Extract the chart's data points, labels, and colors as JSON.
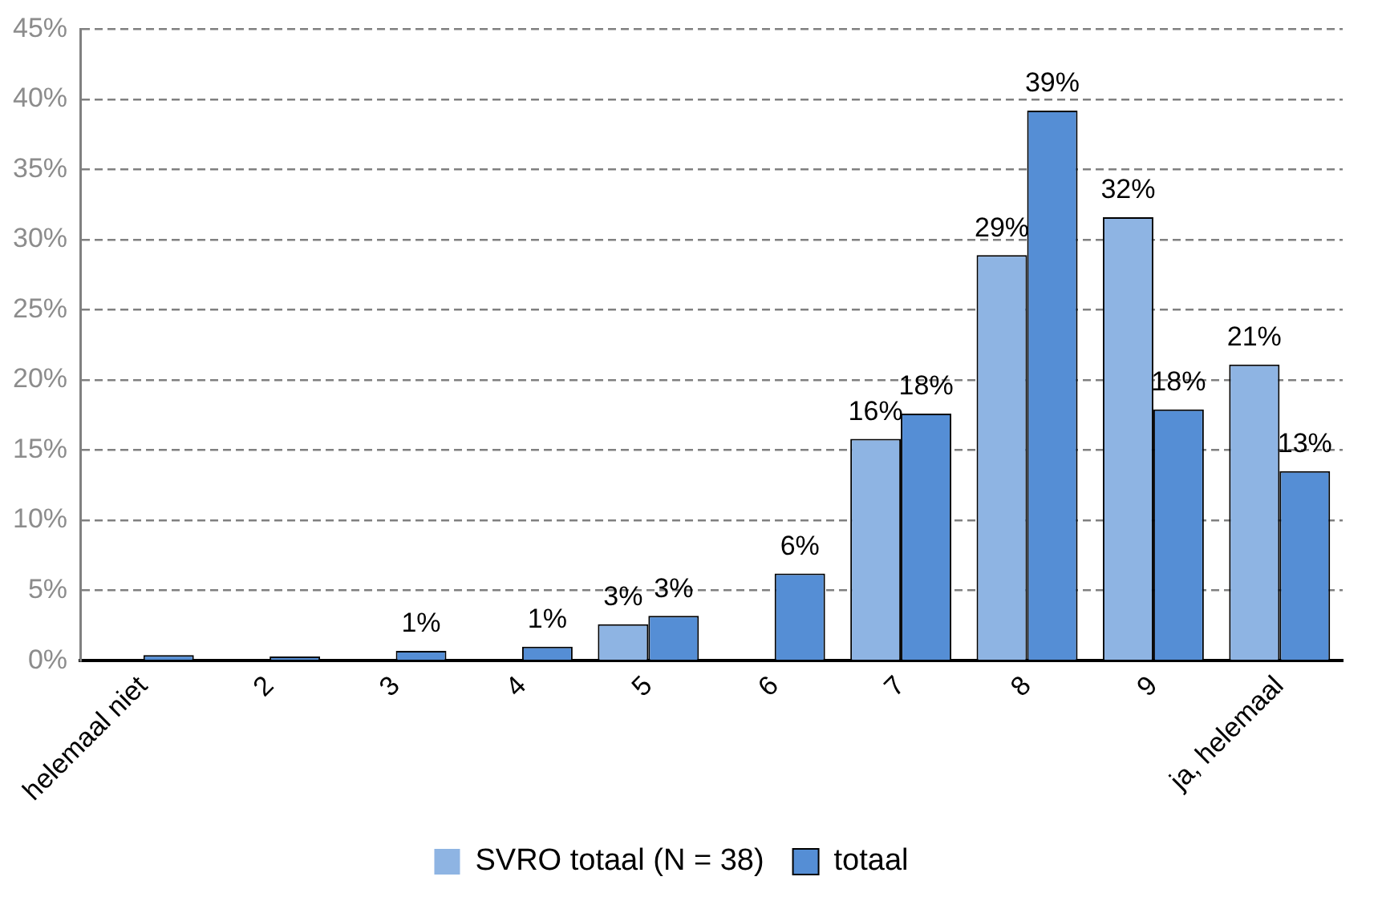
{
  "chart_data": {
    "type": "bar",
    "categories": [
      "helemaal niet",
      "2",
      "3",
      "4",
      "5",
      "6",
      "7",
      "8",
      "9",
      "ja, helemaal"
    ],
    "series": [
      {
        "name": "SVRO totaal (N = 38)",
        "color": "#8eb4e3",
        "values": [
          0,
          0,
          0,
          0,
          2.6,
          0,
          15.8,
          28.9,
          31.6,
          21.1
        ],
        "value_labels": [
          null,
          null,
          null,
          null,
          "3%",
          null,
          "16%",
          "29%",
          "32%",
          "21%"
        ]
      },
      {
        "name": "totaal",
        "color": "#558ed5",
        "values": [
          0.4,
          0.3,
          0.7,
          1.0,
          3.2,
          6.2,
          17.6,
          39.2,
          17.9,
          13.5
        ],
        "value_labels": [
          null,
          null,
          "1%",
          "1%",
          "3%",
          "6%",
          "18%",
          "39%",
          "18%",
          "13%"
        ]
      }
    ],
    "ylim": [
      0,
      45
    ],
    "yticks": [
      {
        "value": 0,
        "label": "0%"
      },
      {
        "value": 5,
        "label": "5%"
      },
      {
        "value": 10,
        "label": "10%"
      },
      {
        "value": 15,
        "label": "15%"
      },
      {
        "value": 20,
        "label": "20%"
      },
      {
        "value": 25,
        "label": "25%"
      },
      {
        "value": 30,
        "label": "30%"
      },
      {
        "value": 35,
        "label": "35%"
      },
      {
        "value": 40,
        "label": "40%"
      },
      {
        "value": 45,
        "label": "45%"
      }
    ],
    "grid": "y",
    "legend": "bottom"
  }
}
